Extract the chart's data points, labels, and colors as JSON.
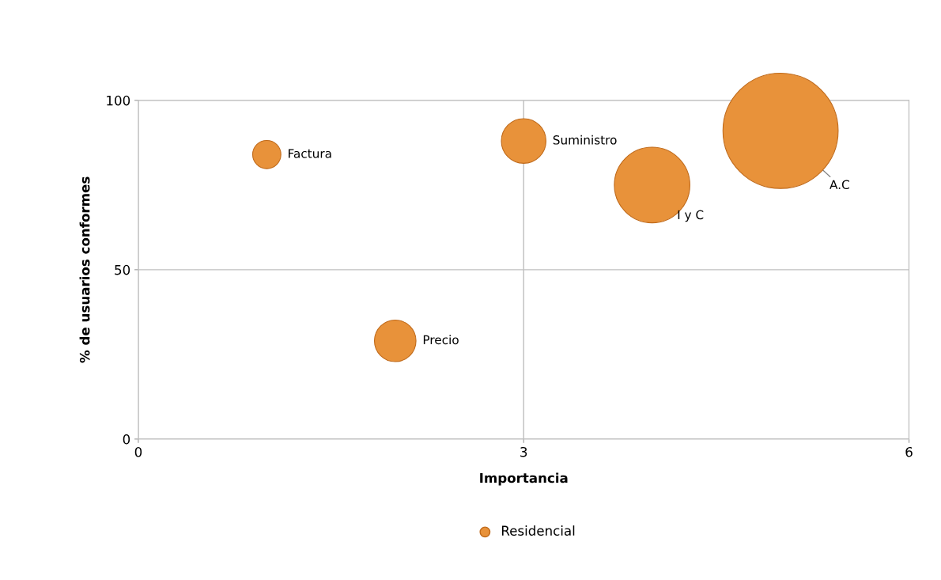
{
  "chart_data": {
    "type": "bubble",
    "xlabel": "Importancia",
    "ylabel": "% de usuarios conformes",
    "xlim": [
      0,
      6
    ],
    "xticks": [
      0,
      3,
      6
    ],
    "ylim": [
      0,
      100
    ],
    "yticks": [
      0,
      50,
      100
    ],
    "grid": true,
    "legend": "bottom",
    "series": [
      {
        "name": "Residencial",
        "color": "#e8923a",
        "x": [
          1,
          2,
          3,
          4,
          5
        ],
        "values": [
          84,
          29,
          88,
          75,
          91
        ],
        "sizes": [
          0.06,
          0.13,
          0.15,
          0.43,
          1
        ]
      }
    ],
    "annotations": [
      {
        "text": "Factura",
        "x": 1,
        "y": 84
      },
      {
        "text": "Precio",
        "x": 2,
        "y": 29
      },
      {
        "text": "Suministro",
        "x": 3,
        "y": 88
      },
      {
        "text": "I y C",
        "x": 4,
        "y": 75
      },
      {
        "text": "A.C",
        "x": 5,
        "y": 91
      }
    ]
  }
}
